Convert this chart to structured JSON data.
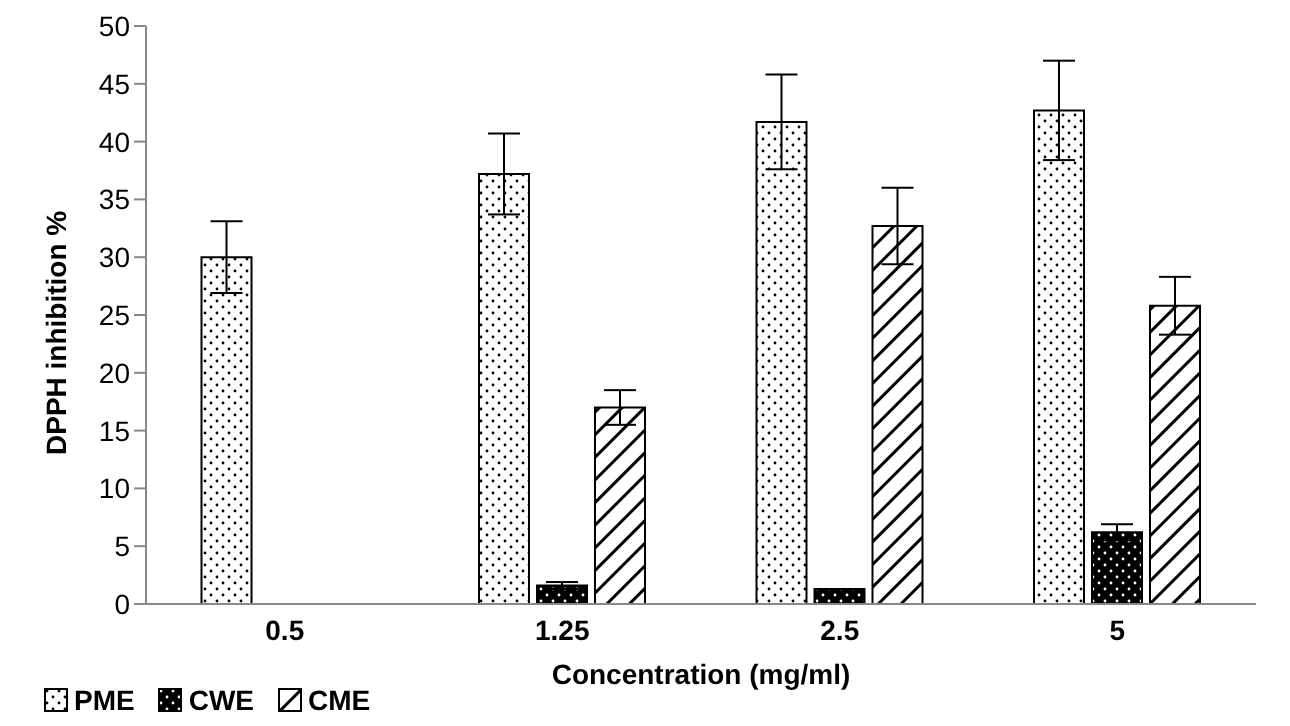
{
  "chart_data": {
    "type": "bar",
    "xlabel": "Concentration (mg/ml)",
    "ylabel": "DPPH inhibition %",
    "categories": [
      "0.5",
      "1.25",
      "2.5",
      "5"
    ],
    "series": [
      {
        "name": "PME",
        "color": "#ffffff",
        "values": [
          30,
          37.2,
          41.7,
          42.7
        ],
        "errors": [
          3.1,
          3.5,
          4.1,
          4.3
        ]
      },
      {
        "name": "CWE",
        "color": "#000000",
        "values": [
          null,
          1.6,
          1.3,
          6.2
        ],
        "errors": [
          null,
          0.3,
          null,
          0.7
        ]
      },
      {
        "name": "CME",
        "color": "#ffffff",
        "values": [
          null,
          17,
          32.7,
          25.8
        ],
        "errors": [
          null,
          1.5,
          3.3,
          2.5
        ]
      }
    ],
    "ylim": [
      0,
      50
    ],
    "yticks": [
      0,
      5,
      10,
      15,
      20,
      25,
      30,
      35,
      40,
      45,
      50
    ],
    "grid": false,
    "legend": "bottom"
  }
}
